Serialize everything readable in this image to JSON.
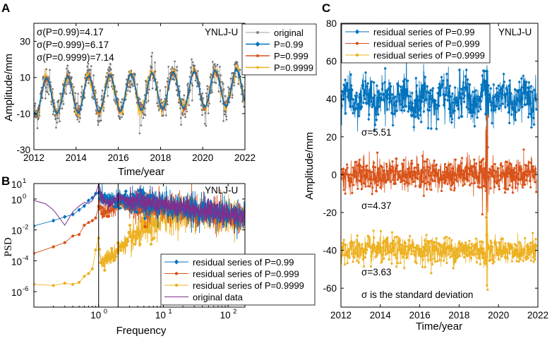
{
  "chart_data": [
    {
      "panel": "A",
      "type": "line",
      "station": "YNLJ-U",
      "xlabel": "Time/year",
      "ylabel": "Amplitude/mm",
      "xlim": [
        2012,
        2022
      ],
      "ylim": [
        -30,
        40
      ],
      "xticks": [
        2012,
        2014,
        2016,
        2018,
        2020,
        2022
      ],
      "yticks": [
        -30,
        -10,
        10,
        30
      ],
      "legend": [
        "original",
        "P=0.99",
        "P=0.999",
        "P=0.9999"
      ],
      "annotations": [
        "σ(P=0.99)=4.17",
        "σ(P=0.999)=6.17",
        "σ(P=0.9999)=7.14"
      ],
      "series": [
        {
          "name": "original",
          "color": "#808080",
          "marker": "dot"
        },
        {
          "name": "P=0.99",
          "color": "#0072BD",
          "marker": "diamond"
        },
        {
          "name": "P=0.999",
          "color": "#D95319",
          "marker": "dot"
        },
        {
          "name": "P=0.9999",
          "color": "#EDB120",
          "marker": "dot"
        }
      ],
      "signal": {
        "mean": 2,
        "amplitude": 10,
        "period_years": 1,
        "peak_phase": 0.6,
        "noise_sd": 4.17
      }
    },
    {
      "panel": "B",
      "type": "line",
      "scale": "log-log",
      "station": "YNLJ-U",
      "xlabel": "Frequency",
      "ylabel": "PSD",
      "xlim": [
        0.1,
        182
      ],
      "ylim": [
        1e-07,
        10
      ],
      "xticks": [
        "10^0",
        "10^1",
        "10^2"
      ],
      "yticks": [
        "10^-6",
        "10^-4",
        "10^-2",
        "10^0",
        "10^1"
      ],
      "vertical_lines": [
        1,
        2
      ],
      "legend": [
        "residual series of P=0.99",
        "residual series of P=0.999",
        "residual series of P=0.9999",
        "original data"
      ],
      "series": [
        {
          "name": "residual series of P=0.99",
          "color": "#0072BD",
          "points": [
            [
              0.1,
              0.018
            ],
            [
              0.2,
              0.04
            ],
            [
              0.3,
              0.07
            ],
            [
              0.4,
              0.1
            ],
            [
              0.5,
              0.2
            ],
            [
              0.6,
              0.35
            ],
            [
              0.7,
              0.8
            ],
            [
              0.8,
              1.2
            ],
            [
              0.9,
              2.2
            ],
            [
              1.0,
              3.0
            ],
            [
              1.1,
              1.2
            ],
            [
              1.3,
              0.9
            ],
            [
              1.6,
              0.8
            ],
            [
              2.0,
              1.0
            ],
            [
              3,
              0.6
            ],
            [
              5,
              0.7
            ],
            [
              10,
              0.4
            ],
            [
              20,
              0.25
            ],
            [
              50,
              0.15
            ],
            [
              100,
              0.1
            ],
            [
              182,
              0.08
            ]
          ]
        },
        {
          "name": "residual series of P=0.999",
          "color": "#D95319",
          "points": [
            [
              0.1,
              0.0003
            ],
            [
              0.2,
              0.0008
            ],
            [
              0.3,
              0.0015
            ],
            [
              0.4,
              0.004
            ],
            [
              0.5,
              0.005
            ],
            [
              0.6,
              0.02
            ],
            [
              0.7,
              0.03
            ],
            [
              0.8,
              0.04
            ],
            [
              0.9,
              0.06
            ],
            [
              1.0,
              0.3
            ],
            [
              1.1,
              0.2
            ],
            [
              1.3,
              0.15
            ],
            [
              1.6,
              0.2
            ],
            [
              2.0,
              0.8
            ],
            [
              3,
              0.3
            ],
            [
              5,
              0.4
            ],
            [
              10,
              0.3
            ],
            [
              20,
              0.2
            ],
            [
              50,
              0.12
            ],
            [
              100,
              0.08
            ],
            [
              182,
              0.07
            ]
          ]
        },
        {
          "name": "residual series of P=0.9999",
          "color": "#EDB120",
          "points": [
            [
              0.1,
              3e-06
            ],
            [
              0.2,
              2.5e-06
            ],
            [
              0.3,
              3.5e-06
            ],
            [
              0.4,
              3e-06
            ],
            [
              0.5,
              4e-06
            ],
            [
              0.6,
              1e-05
            ],
            [
              0.7,
              1.5e-05
            ],
            [
              0.8,
              3e-05
            ],
            [
              0.9,
              0.0005
            ],
            [
              1.0,
              0.002
            ],
            [
              1.1,
              8e-05
            ],
            [
              1.3,
              0.00015
            ],
            [
              1.6,
              0.0002
            ],
            [
              2.0,
              0.0006
            ],
            [
              3,
              0.002
            ],
            [
              5,
              0.01
            ],
            [
              10,
              0.05
            ],
            [
              20,
              0.1
            ],
            [
              50,
              0.1
            ],
            [
              100,
              0.08
            ],
            [
              182,
              0.06
            ]
          ]
        },
        {
          "name": "original data",
          "color": "#7E2F8E",
          "points": [
            [
              0.1,
              0.8
            ],
            [
              0.15,
              0.5
            ],
            [
              0.2,
              0.2
            ],
            [
              0.3,
              0.02
            ],
            [
              0.4,
              0.15
            ],
            [
              0.5,
              0.35
            ],
            [
              0.6,
              0.6
            ],
            [
              0.7,
              0.5
            ],
            [
              0.8,
              0.8
            ],
            [
              0.9,
              2
            ],
            [
              1.0,
              6
            ],
            [
              1.1,
              1.2
            ],
            [
              1.3,
              0.6
            ],
            [
              1.6,
              0.5
            ],
            [
              2.0,
              1.5
            ],
            [
              3,
              0.8
            ],
            [
              5,
              0.6
            ],
            [
              10,
              0.4
            ],
            [
              20,
              0.3
            ],
            [
              50,
              0.15
            ],
            [
              100,
              0.1
            ],
            [
              182,
              0.08
            ]
          ]
        }
      ]
    },
    {
      "panel": "C",
      "type": "line",
      "station": "YNLJ-U",
      "xlabel": "Time/year",
      "ylabel": "Amplitude/mm",
      "xlim": [
        2012,
        2022
      ],
      "ylim": [
        -70,
        80
      ],
      "xticks": [
        2012,
        2014,
        2016,
        2018,
        2020,
        2022
      ],
      "yticks": [
        -60,
        -40,
        -20,
        0,
        20,
        40,
        60,
        80
      ],
      "legend": [
        "residual series of P=0.99",
        "residual series of P=0.999",
        "residual series of P=0.9999"
      ],
      "annotations": [
        "σ=5.51",
        "σ=4.37",
        "σ=3.63",
        "σ is the standard deviation"
      ],
      "series": [
        {
          "name": "residual series of P=0.99",
          "color": "#0072BD",
          "offset": 40,
          "sigma": 5.51
        },
        {
          "name": "residual series of P=0.999",
          "color": "#D95319",
          "offset": 0,
          "sigma": 4.37
        },
        {
          "name": "residual series of P=0.9999",
          "color": "#EDB120",
          "offset": -40,
          "sigma": 3.63
        }
      ]
    }
  ],
  "labels": {
    "panel_a": "A",
    "panel_b": "B",
    "panel_c": "C"
  },
  "colors": {
    "axis": "#000000",
    "background": "#ffffff"
  }
}
